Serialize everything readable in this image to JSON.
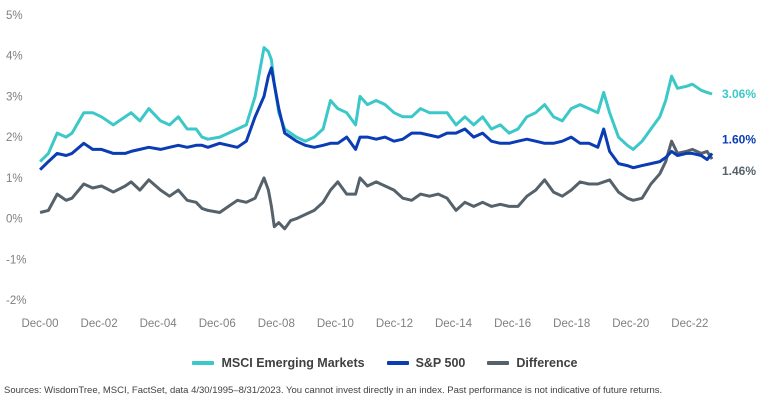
{
  "chart_data": {
    "type": "line",
    "title": "",
    "xlabel": "",
    "ylabel": "",
    "ylim": [
      -2,
      5
    ],
    "yticks": [
      -2,
      -1,
      0,
      1,
      2,
      3,
      4,
      5
    ],
    "ytick_labels": [
      "-2%",
      "-1%",
      "0%",
      "1%",
      "2%",
      "3%",
      "4%",
      "5%"
    ],
    "xlim": [
      2000.917,
      2023.667
    ],
    "xticks": [
      2000.917,
      2002.917,
      2004.917,
      2006.917,
      2008.917,
      2010.917,
      2012.917,
      2014.917,
      2016.917,
      2018.917,
      2020.917,
      2022.917
    ],
    "xtick_labels": [
      "Dec-00",
      "Dec-02",
      "Dec-04",
      "Dec-06",
      "Dec-08",
      "Dec-10",
      "Dec-12",
      "Dec-14",
      "Dec-16",
      "Dec-18",
      "Dec-20",
      "Dec-22"
    ],
    "grid": false,
    "legend_position": "bottom",
    "series": [
      {
        "name": "MSCI Emerging Markets",
        "color": "#3cc8c8",
        "end_label": "3.06%",
        "x": [
          2000.92,
          2001.2,
          2001.5,
          2001.8,
          2002.0,
          2002.4,
          2002.7,
          2003.0,
          2003.4,
          2003.8,
          2004.0,
          2004.3,
          2004.6,
          2005.0,
          2005.3,
          2005.6,
          2005.9,
          2006.2,
          2006.4,
          2006.6,
          2007.0,
          2007.3,
          2007.6,
          2007.9,
          2008.2,
          2008.5,
          2008.65,
          2008.75,
          2008.85,
          2009.0,
          2009.2,
          2009.4,
          2009.6,
          2009.9,
          2010.2,
          2010.5,
          2010.75,
          2011.0,
          2011.3,
          2011.6,
          2011.75,
          2012.0,
          2012.3,
          2012.6,
          2012.9,
          2013.2,
          2013.5,
          2013.8,
          2014.1,
          2014.4,
          2014.7,
          2015.0,
          2015.3,
          2015.6,
          2015.9,
          2016.2,
          2016.5,
          2016.8,
          2017.1,
          2017.4,
          2017.7,
          2018.0,
          2018.3,
          2018.6,
          2018.9,
          2019.2,
          2019.5,
          2019.8,
          2020.0,
          2020.2,
          2020.5,
          2020.8,
          2021.0,
          2021.3,
          2021.6,
          2021.9,
          2022.1,
          2022.3,
          2022.5,
          2022.8,
          2023.0,
          2023.3,
          2023.5,
          2023.67
        ],
        "values": [
          1.4,
          1.6,
          2.1,
          2.0,
          2.1,
          2.6,
          2.6,
          2.5,
          2.3,
          2.5,
          2.6,
          2.4,
          2.7,
          2.4,
          2.3,
          2.5,
          2.2,
          2.2,
          2.0,
          1.95,
          2.0,
          2.1,
          2.2,
          2.3,
          3.0,
          4.2,
          4.1,
          3.9,
          3.3,
          2.6,
          2.2,
          2.1,
          2.0,
          1.9,
          2.0,
          2.2,
          2.9,
          2.7,
          2.6,
          2.3,
          3.0,
          2.8,
          2.9,
          2.8,
          2.6,
          2.5,
          2.5,
          2.7,
          2.6,
          2.6,
          2.6,
          2.3,
          2.5,
          2.3,
          2.5,
          2.2,
          2.3,
          2.1,
          2.2,
          2.5,
          2.6,
          2.8,
          2.5,
          2.4,
          2.7,
          2.8,
          2.7,
          2.6,
          3.1,
          2.6,
          2.0,
          1.8,
          1.7,
          1.9,
          2.2,
          2.5,
          2.9,
          3.5,
          3.2,
          3.25,
          3.3,
          3.15,
          3.1,
          3.06
        ]
      },
      {
        "name": "S&P 500",
        "color": "#0a3cb4",
        "end_label": "1.60%",
        "x": [
          2000.92,
          2001.2,
          2001.5,
          2001.8,
          2002.0,
          2002.4,
          2002.7,
          2003.0,
          2003.4,
          2003.8,
          2004.0,
          2004.3,
          2004.6,
          2005.0,
          2005.3,
          2005.6,
          2005.9,
          2006.2,
          2006.4,
          2006.6,
          2007.0,
          2007.3,
          2007.6,
          2007.9,
          2008.2,
          2008.5,
          2008.65,
          2008.75,
          2008.85,
          2009.0,
          2009.2,
          2009.4,
          2009.6,
          2009.9,
          2010.2,
          2010.5,
          2010.75,
          2011.0,
          2011.3,
          2011.6,
          2011.75,
          2012.0,
          2012.3,
          2012.6,
          2012.9,
          2013.2,
          2013.5,
          2013.8,
          2014.1,
          2014.4,
          2014.7,
          2015.0,
          2015.3,
          2015.6,
          2015.9,
          2016.2,
          2016.5,
          2016.8,
          2017.1,
          2017.4,
          2017.7,
          2018.0,
          2018.3,
          2018.6,
          2018.9,
          2019.2,
          2019.5,
          2019.8,
          2020.0,
          2020.2,
          2020.5,
          2020.8,
          2021.0,
          2021.3,
          2021.6,
          2021.9,
          2022.1,
          2022.3,
          2022.5,
          2022.8,
          2023.0,
          2023.3,
          2023.5,
          2023.67
        ],
        "values": [
          1.2,
          1.4,
          1.6,
          1.55,
          1.6,
          1.85,
          1.7,
          1.7,
          1.6,
          1.6,
          1.65,
          1.7,
          1.75,
          1.7,
          1.75,
          1.8,
          1.75,
          1.8,
          1.8,
          1.75,
          1.85,
          1.8,
          1.75,
          1.9,
          2.5,
          3.0,
          3.5,
          3.7,
          3.3,
          2.7,
          2.1,
          2.0,
          1.9,
          1.8,
          1.75,
          1.8,
          1.85,
          1.85,
          2.0,
          1.7,
          2.0,
          2.0,
          1.95,
          2.0,
          1.9,
          1.95,
          2.1,
          2.1,
          2.05,
          2.0,
          2.1,
          2.1,
          2.2,
          2.0,
          2.1,
          1.9,
          1.85,
          1.85,
          1.9,
          1.95,
          1.9,
          1.85,
          1.85,
          1.9,
          2.0,
          1.85,
          1.85,
          1.75,
          2.2,
          1.65,
          1.35,
          1.3,
          1.25,
          1.3,
          1.35,
          1.4,
          1.5,
          1.65,
          1.55,
          1.6,
          1.6,
          1.55,
          1.45,
          1.6
        ]
      },
      {
        "name": "Difference",
        "color": "#56626b",
        "end_label": "1.46%",
        "x": [
          2000.92,
          2001.2,
          2001.5,
          2001.8,
          2002.0,
          2002.4,
          2002.7,
          2003.0,
          2003.4,
          2003.8,
          2004.0,
          2004.3,
          2004.6,
          2005.0,
          2005.3,
          2005.6,
          2005.9,
          2006.2,
          2006.4,
          2006.6,
          2007.0,
          2007.3,
          2007.6,
          2007.9,
          2008.2,
          2008.5,
          2008.65,
          2008.75,
          2008.85,
          2009.0,
          2009.2,
          2009.4,
          2009.6,
          2009.9,
          2010.2,
          2010.5,
          2010.75,
          2011.0,
          2011.3,
          2011.6,
          2011.75,
          2012.0,
          2012.3,
          2012.6,
          2012.9,
          2013.2,
          2013.5,
          2013.8,
          2014.1,
          2014.4,
          2014.7,
          2015.0,
          2015.3,
          2015.6,
          2015.9,
          2016.2,
          2016.5,
          2016.8,
          2017.1,
          2017.4,
          2017.7,
          2018.0,
          2018.3,
          2018.6,
          2018.9,
          2019.2,
          2019.5,
          2019.8,
          2020.0,
          2020.2,
          2020.5,
          2020.8,
          2021.0,
          2021.3,
          2021.6,
          2021.9,
          2022.1,
          2022.3,
          2022.5,
          2022.8,
          2023.0,
          2023.3,
          2023.5,
          2023.67
        ],
        "values": [
          0.15,
          0.2,
          0.6,
          0.45,
          0.5,
          0.85,
          0.75,
          0.8,
          0.65,
          0.8,
          0.9,
          0.7,
          0.95,
          0.7,
          0.55,
          0.7,
          0.45,
          0.4,
          0.25,
          0.2,
          0.15,
          0.3,
          0.45,
          0.4,
          0.5,
          1.0,
          0.7,
          0.3,
          -0.2,
          -0.1,
          -0.25,
          -0.05,
          0.0,
          0.1,
          0.2,
          0.4,
          0.7,
          0.9,
          0.6,
          0.6,
          1.0,
          0.8,
          0.9,
          0.8,
          0.7,
          0.5,
          0.45,
          0.6,
          0.55,
          0.6,
          0.5,
          0.2,
          0.4,
          0.3,
          0.4,
          0.3,
          0.35,
          0.3,
          0.3,
          0.55,
          0.7,
          0.95,
          0.65,
          0.55,
          0.7,
          0.9,
          0.85,
          0.85,
          0.9,
          0.95,
          0.65,
          0.5,
          0.45,
          0.5,
          0.85,
          1.1,
          1.4,
          1.9,
          1.6,
          1.65,
          1.7,
          1.6,
          1.65,
          1.46
        ]
      }
    ]
  },
  "footer": {
    "source": "Sources: WisdomTree, MSCI, FactSet, data 4/30/1995–8/31/2023. You cannot invest directly in an index. Past performance is not indicative of future returns."
  }
}
